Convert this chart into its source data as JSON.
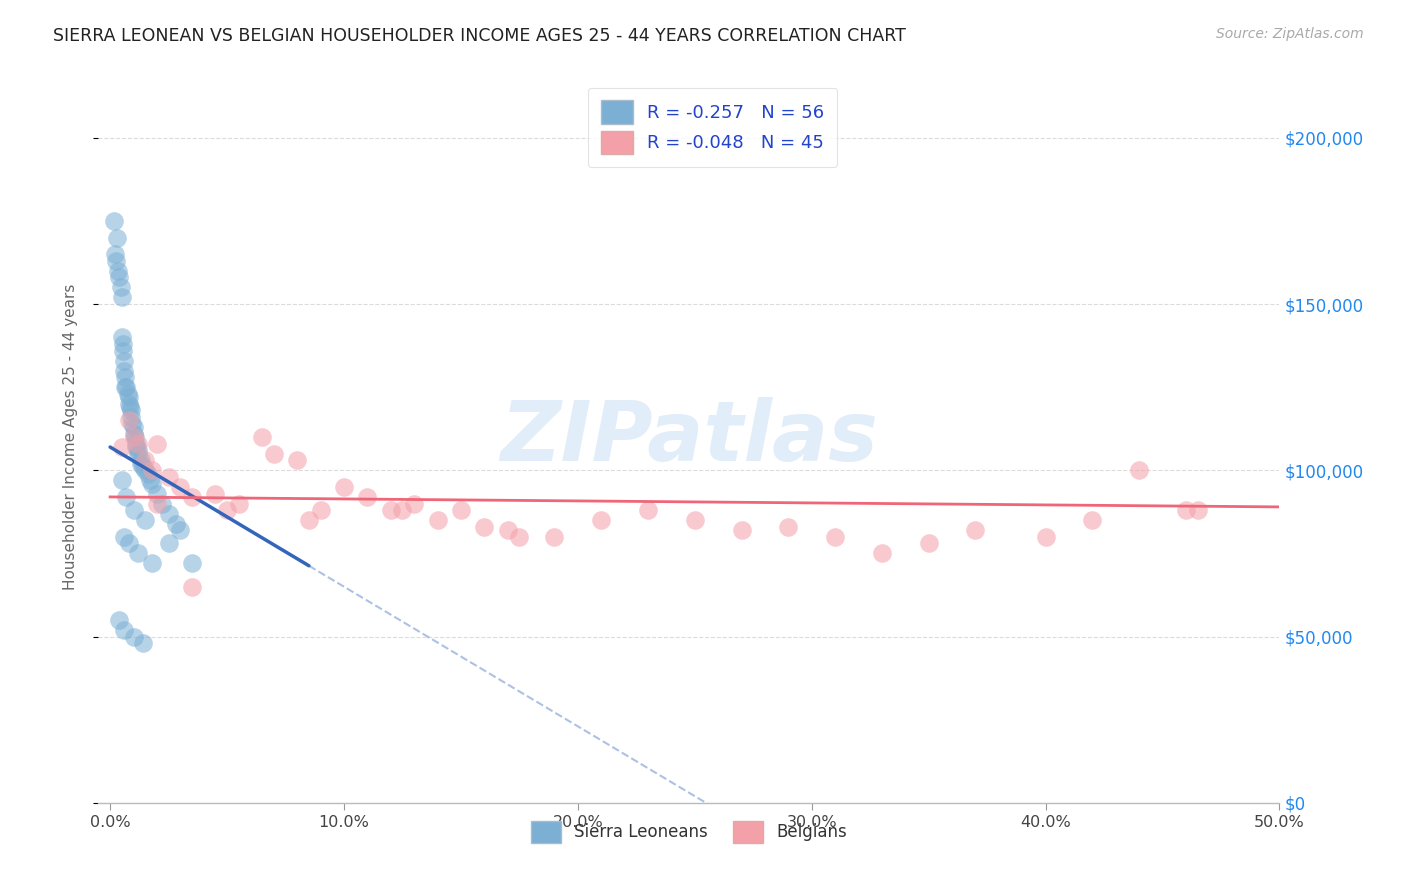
{
  "title": "SIERRA LEONEAN VS BELGIAN HOUSEHOLDER INCOME AGES 25 - 44 YEARS CORRELATION CHART",
  "source": "Source: ZipAtlas.com",
  "ylabel": "Householder Income Ages 25 - 44 years",
  "xlim": [
    -0.5,
    50.0
  ],
  "ylim": [
    0,
    220000
  ],
  "xtick_vals": [
    0.0,
    10.0,
    20.0,
    30.0,
    40.0,
    50.0
  ],
  "ytick_vals": [
    0,
    50000,
    100000,
    150000,
    200000
  ],
  "sierra_color": "#7BAFD4",
  "belgian_color": "#F4A0A8",
  "sierra_line_color": "#3366BB",
  "belgian_line_color": "#EE6677",
  "legend_label_1": "R = -0.257   N = 56",
  "legend_label_2": "R = -0.048   N = 45",
  "bottom_legend_1": "Sierra Leoneans",
  "bottom_legend_2": "Belgians",
  "watermark": "ZIPatlas",
  "sierra_x": [
    0.15,
    0.2,
    0.25,
    0.3,
    0.35,
    0.4,
    0.45,
    0.5,
    0.5,
    0.55,
    0.55,
    0.6,
    0.6,
    0.65,
    0.65,
    0.7,
    0.75,
    0.8,
    0.8,
    0.85,
    0.9,
    0.9,
    0.95,
    1.0,
    1.0,
    1.05,
    1.1,
    1.1,
    1.2,
    1.2,
    1.3,
    1.3,
    1.4,
    1.5,
    1.6,
    1.7,
    1.8,
    2.0,
    2.2,
    2.5,
    2.8,
    3.0,
    0.5,
    0.7,
    1.0,
    1.5,
    2.5,
    3.5,
    0.6,
    0.8,
    1.2,
    1.8,
    0.4,
    0.6,
    1.0,
    1.4
  ],
  "sierra_y": [
    175000,
    165000,
    163000,
    170000,
    160000,
    158000,
    155000,
    140000,
    152000,
    138000,
    136000,
    133000,
    130000,
    128000,
    125000,
    125000,
    123000,
    122000,
    120000,
    119000,
    118000,
    116000,
    114000,
    113000,
    111000,
    110000,
    108000,
    107000,
    106000,
    105000,
    103000,
    102000,
    101000,
    100000,
    99000,
    97000,
    96000,
    93000,
    90000,
    87000,
    84000,
    82000,
    97000,
    92000,
    88000,
    85000,
    78000,
    72000,
    80000,
    78000,
    75000,
    72000,
    55000,
    52000,
    50000,
    48000
  ],
  "belgian_x": [
    0.5,
    0.8,
    1.0,
    1.2,
    1.5,
    1.8,
    2.0,
    2.5,
    3.0,
    3.5,
    4.5,
    5.5,
    6.5,
    7.0,
    8.0,
    9.0,
    10.0,
    11.0,
    12.0,
    13.0,
    14.0,
    15.0,
    16.0,
    17.0,
    19.0,
    21.0,
    23.0,
    25.0,
    27.0,
    29.0,
    31.0,
    33.0,
    35.0,
    37.0,
    40.0,
    42.0,
    44.0,
    46.0,
    2.0,
    3.5,
    5.0,
    8.5,
    12.5,
    17.5,
    46.5
  ],
  "belgian_y": [
    107000,
    115000,
    110000,
    108000,
    103000,
    100000,
    108000,
    98000,
    95000,
    92000,
    93000,
    90000,
    110000,
    105000,
    103000,
    88000,
    95000,
    92000,
    88000,
    90000,
    85000,
    88000,
    83000,
    82000,
    80000,
    85000,
    88000,
    85000,
    82000,
    83000,
    80000,
    75000,
    78000,
    82000,
    80000,
    85000,
    100000,
    88000,
    90000,
    65000,
    88000,
    85000,
    88000,
    80000,
    88000
  ],
  "sl_line_x0": 0.0,
  "sl_line_y0": 107000,
  "sl_line_slope": -4200,
  "sl_solid_end": 8.5,
  "bel_line_x0": 0.0,
  "bel_line_y0": 92000,
  "bel_line_slope": -60
}
